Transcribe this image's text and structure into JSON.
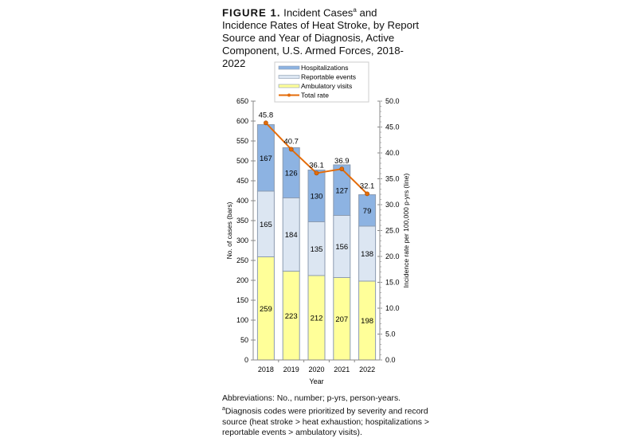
{
  "figure": {
    "label": "FIGURE 1.",
    "title": "Incident Cases",
    "title_sup": "a",
    "title_rest": "and Incidence Rates of Heat Stroke, by Report Source and Year of Diagnosis, Active Component, U.S. Armed Forces, 2018-2022"
  },
  "notes": {
    "abbreviations": "Abbreviations: No., number; p-yrs, person-years.",
    "footnote_marker": "a",
    "footnote": "Diagnosis codes were prioritized by severity and record source (heat stroke > heat exhaustion; hospitalizations > reportable events > ambulatory visits)."
  },
  "chart_data": {
    "type": "bar",
    "stacked": true,
    "categories": [
      "2018",
      "2019",
      "2020",
      "2021",
      "2022"
    ],
    "xlabel": "Year",
    "ylabel": "No. of cases (bars)",
    "ylabel_right": "Incidence rate per 100,000 p-yrs (line)",
    "ylim": [
      0,
      650
    ],
    "yticks": [
      0,
      50,
      100,
      150,
      200,
      250,
      300,
      350,
      400,
      450,
      500,
      550,
      600,
      650
    ],
    "ylim_right": [
      0,
      50
    ],
    "yticks_right": [
      "0.0",
      "5.0",
      "10.0",
      "15.0",
      "20.0",
      "25.0",
      "30.0",
      "35.0",
      "40.0",
      "45.0",
      "50.0"
    ],
    "grid": false,
    "legend_position": "top",
    "series": [
      {
        "name": "Ambulatory visits",
        "color": "#ffff99",
        "values": [
          259,
          223,
          212,
          207,
          198
        ]
      },
      {
        "name": "Reportable events",
        "color": "#dce6f2",
        "values": [
          165,
          184,
          135,
          156,
          138
        ]
      },
      {
        "name": "Hospitalizations",
        "color": "#8db3e2",
        "values": [
          167,
          126,
          130,
          127,
          79
        ]
      }
    ],
    "line": {
      "name": "Total rate",
      "color": "#e46c0a",
      "axis": "right",
      "values": [
        45.8,
        40.7,
        36.1,
        36.9,
        32.1
      ],
      "labels": [
        "45.8",
        "40.7",
        "36.1",
        "36.9",
        "32.1"
      ]
    },
    "legend_order": [
      "Hospitalizations",
      "Reportable events",
      "Ambulatory visits",
      "Total rate"
    ]
  }
}
